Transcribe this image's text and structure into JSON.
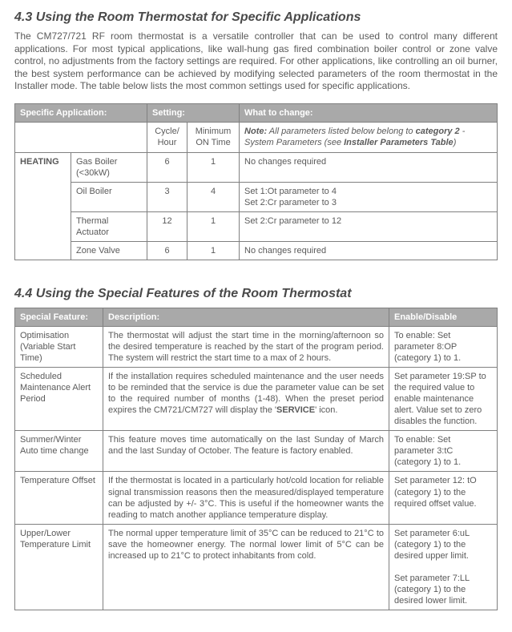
{
  "section43": {
    "title": "4.3 Using the Room Thermostat for Specific Applications",
    "intro": "The CM727/721 RF room thermostat is a versatile controller that can be used to control many different applications. For most typical applications, like wall-hung gas fired combination boiler control or zone valve control, no adjustments from the factory settings are required. For other applications, like controlling an oil burner, the best system performance can be achieved by modifying selected parameters of the room thermostat in the Installer mode. The table below lists the most common settings used for specific applications.",
    "table": {
      "headers": {
        "h1": "Specific Application:",
        "h2": "Setting:",
        "h3": "What to change:"
      },
      "sub": {
        "s1": "Cycle/ Hour",
        "s2": "Minimum ON Time",
        "note_prefix": "Note:",
        "note_body": " All parameters listed below belong to ",
        "note_cat": "category 2",
        "note_tail": " - System Parameters (see ",
        "note_link": "Installer Parameters Table",
        "note_close": ")"
      },
      "group_label": "HEATING",
      "rows": [
        {
          "app": "Gas Boiler (<30kW)",
          "cycle": "6",
          "min": "1",
          "change": "No changes required"
        },
        {
          "app": "Oil Boiler",
          "cycle": "3",
          "min": "4",
          "change": "Set 1:Ot parameter to 4\nSet 2:Cr parameter to 3"
        },
        {
          "app": "Thermal Actuator",
          "cycle": "12",
          "min": "1",
          "change": "Set 2:Cr parameter to 12"
        },
        {
          "app": "Zone Valve",
          "cycle": "6",
          "min": "1",
          "change": "No changes required"
        }
      ]
    }
  },
  "section44": {
    "title": "4.4 Using the Special Features of the Room Thermostat",
    "table": {
      "headers": {
        "h1": "Special Feature:",
        "h2": "Description:",
        "h3": "Enable/Disable"
      },
      "rows": [
        {
          "feature": "Optimisation (Variable Start Time)",
          "desc": "The thermostat will adjust the start time in the morning/afternoon so the desired temperature is reached by the start of the program period. The system will restrict the start time to a max of 2 hours.",
          "enable": "To enable: Set parameter 8:OP (category 1) to 1."
        },
        {
          "feature": "Scheduled Maintenance Alert Period",
          "desc": "If the installation requires scheduled maintenance and the user needs to be reminded that the service is due the parameter value can be set to the required number of months (1-48). When the preset period expires the CM721/CM727 will display the 'SERVICE' icon.",
          "enable": "Set parameter 19:SP to the required value to enable maintenance alert. Value set to zero disables the function."
        },
        {
          "feature": "Summer/Winter Auto time change",
          "desc": "This feature moves time automatically on the last Sunday of March and the last Sunday of October. The feature is factory enabled.",
          "enable": "To enable: Set parameter 3:tC (category 1) to 1."
        },
        {
          "feature": "Temperature Offset",
          "desc": "If the thermostat is located in a particularly hot/cold location for reliable signal transmission reasons then the measured/displayed temperature can be adjusted by +/- 3°C. This is useful if the homeowner wants the reading to match another appliance temperature display.",
          "enable": "Set parameter 12: tO (category 1) to the required offset value."
        },
        {
          "feature": "Upper/Lower Temperature Limit",
          "desc": "The normal upper temperature limit of 35°C can be reduced to 21°C to save the homeowner energy. The normal lower limit of 5°C can be increased up to 21°C to protect inhabitants from cold.",
          "enable": "Set parameter 6:uL (category 1) to the desired upper limit.\n\nSet parameter 7:LL (category 1) to the desired lower limit."
        }
      ]
    }
  }
}
